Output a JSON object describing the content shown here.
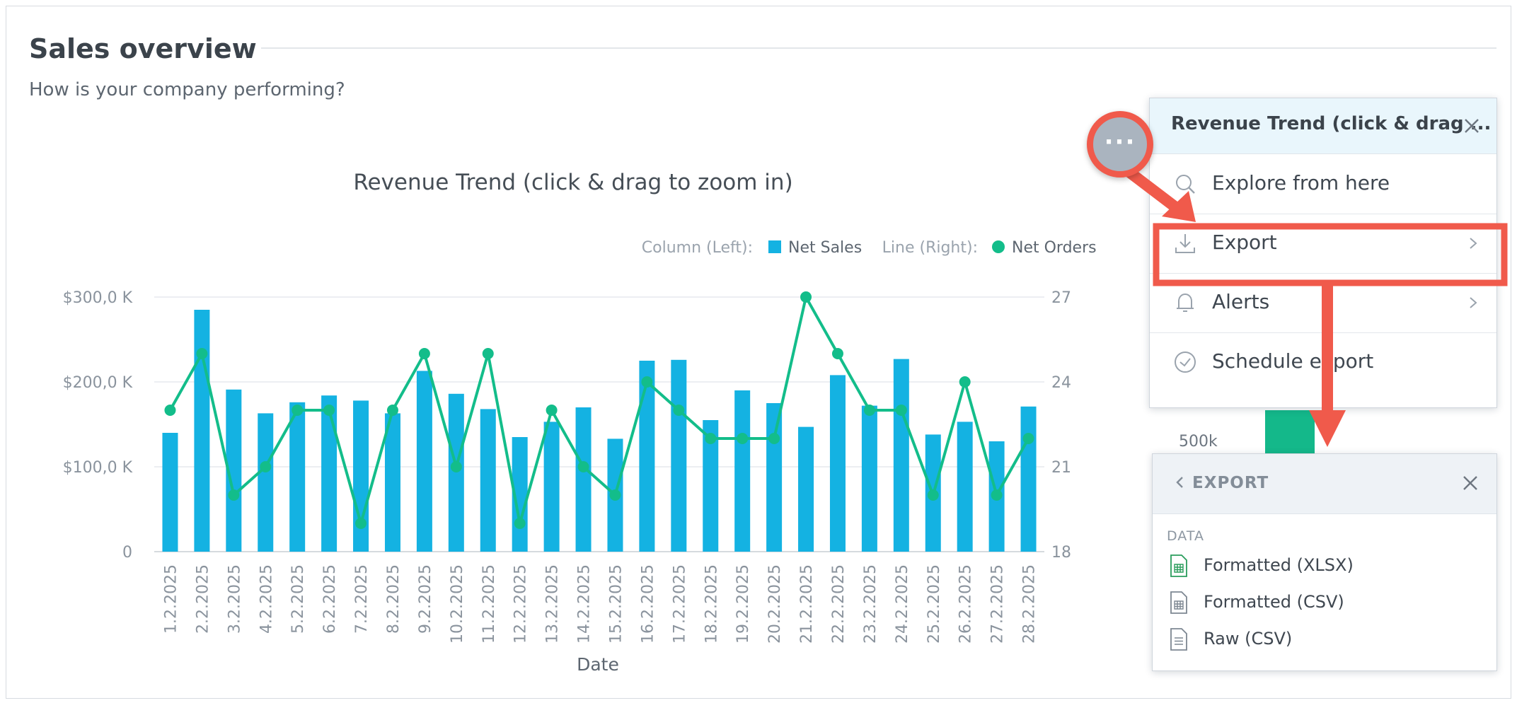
{
  "dashboard": {
    "title": "Sales overview",
    "subtitle": "How is your company performing?"
  },
  "chart_data": {
    "type": "bar",
    "title": "Revenue Trend (click & drag to zoom in)",
    "xlabel": "Date",
    "legend": {
      "left_prefix": "Column (Left):",
      "left_series": "Net Sales",
      "right_prefix": "Line (Right):",
      "right_series": "Net Orders",
      "position": "top-right"
    },
    "categories": [
      "1.2.2025",
      "2.2.2025",
      "3.2.2025",
      "4.2.2025",
      "5.2.2025",
      "6.2.2025",
      "7.2.2025",
      "8.2.2025",
      "9.2.2025",
      "10.2.2025",
      "11.2.2025",
      "12.2.2025",
      "13.2.2025",
      "14.2.2025",
      "15.2.2025",
      "16.2.2025",
      "17.2.2025",
      "18.2.2025",
      "19.2.2025",
      "20.2.2025",
      "21.2.2025",
      "22.2.2025",
      "23.2.2025",
      "24.2.2025",
      "25.2.2025",
      "26.2.2025",
      "27.2.2025",
      "28.2.2025"
    ],
    "series": [
      {
        "name": "Net Sales",
        "type": "bar",
        "axis": "left",
        "color": "#14b2e2",
        "values": [
          140,
          285,
          191,
          163,
          176,
          184,
          178,
          163,
          213,
          186,
          168,
          135,
          153,
          170,
          133,
          225,
          226,
          155,
          190,
          175,
          147,
          208,
          172,
          227,
          138,
          153,
          130,
          171
        ]
      },
      {
        "name": "Net Orders",
        "type": "line",
        "axis": "right",
        "color": "#13bd8a",
        "values": [
          23,
          25,
          20,
          21,
          23,
          23,
          19,
          23,
          25,
          21,
          25,
          19,
          23,
          21,
          20,
          24,
          23,
          22,
          22,
          22,
          27,
          25,
          23,
          23,
          20,
          24,
          20,
          22
        ]
      }
    ],
    "y_left": {
      "min": 0,
      "max": 300,
      "ticks": [
        0,
        100,
        200,
        300
      ],
      "tick_labels": [
        "0",
        "$100,0 K",
        "$200,0 K",
        "$300,0 K"
      ],
      "unit": "K"
    },
    "y_right": {
      "min": 18,
      "max": 27,
      "ticks": [
        18,
        21,
        24,
        27
      ],
      "tick_labels": [
        "18",
        "21",
        "24",
        "27"
      ]
    },
    "grid": true
  },
  "menu": {
    "title": "Revenue Trend (click & drag ...",
    "items": [
      {
        "label": "Explore from here",
        "icon": "explore-icon",
        "has_submenu": false
      },
      {
        "label": "Export",
        "icon": "download-icon",
        "has_submenu": true
      },
      {
        "label": "Alerts",
        "icon": "bell-icon",
        "has_submenu": true
      },
      {
        "label": "Schedule export",
        "icon": "clock-icon",
        "has_submenu": false
      }
    ]
  },
  "export_menu": {
    "back_label": "EXPORT",
    "section_label": "DATA",
    "items": [
      {
        "label": "Formatted (XLSX)",
        "icon": "xlsx-file-icon",
        "color": "#2a9d5c"
      },
      {
        "label": "Formatted (CSV)",
        "icon": "csv-file-icon",
        "color": "#7d8792"
      },
      {
        "label": "Raw (CSV)",
        "icon": "raw-file-icon",
        "color": "#7d8792"
      }
    ]
  },
  "background_widget": {
    "axis_label": "500k",
    "bar_color": "#14b88a"
  },
  "colors": {
    "annotation": "#f05a4b",
    "menu_header": "#e9f6fc"
  }
}
